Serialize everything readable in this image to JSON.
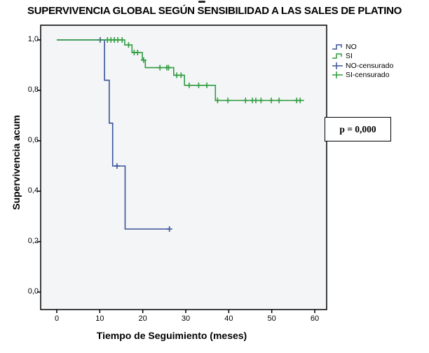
{
  "annotation": {
    "text": "p = 0,000"
  },
  "legend": {
    "items": [
      {
        "label": "NO",
        "symbol": "step",
        "color": "#3a539b"
      },
      {
        "label": "SI",
        "symbol": "step",
        "color": "#2f9c3f"
      },
      {
        "label": "NO-censurado",
        "symbol": "plus",
        "color": "#3a539b"
      },
      {
        "label": "SI-censurado",
        "symbol": "plus",
        "color": "#2f9c3f"
      }
    ]
  },
  "chart_data": {
    "type": "line",
    "subtype": "kaplan-meier-step",
    "title": "SUPERVIVENCIA GLOBAL SEGÚN SENSIBILIDAD A LAS SALES DE PLATINO",
    "xlabel": "Tiempo de Seguimiento (meses)",
    "ylabel": "Supervivencia acum",
    "xlim": [
      0,
      63
    ],
    "ylim": [
      0.0,
      1.0
    ],
    "x_ticks": [
      0,
      10,
      20,
      30,
      40,
      50,
      60
    ],
    "y_ticks": [
      {
        "value": 1.0,
        "label": "1,0"
      },
      {
        "value": 0.8,
        "label": "0,8"
      },
      {
        "value": 0.6,
        "label": "0,6"
      },
      {
        "value": 0.4,
        "label": "0,4"
      },
      {
        "value": 0.2,
        "label": "0,2"
      },
      {
        "value": 0.0,
        "label": "0,0"
      }
    ],
    "grid": false,
    "plot_background": "#f4f5f7",
    "legend_position": "right-top-outside",
    "series": [
      {
        "name": "NO",
        "color": "#3a539b",
        "steps": [
          [
            0,
            1.0
          ],
          [
            11.1,
            1.0
          ],
          [
            11.1,
            0.84
          ],
          [
            12.2,
            0.84
          ],
          [
            12.2,
            0.67
          ],
          [
            13.0,
            0.67
          ],
          [
            13.0,
            0.5
          ],
          [
            15.9,
            0.5
          ],
          [
            15.9,
            0.25
          ],
          [
            26.2,
            0.25
          ]
        ],
        "censored": [
          [
            10.1,
            1.0
          ],
          [
            14.0,
            0.5
          ],
          [
            26.2,
            0.25
          ]
        ]
      },
      {
        "name": "SI",
        "color": "#2f9c3f",
        "steps": [
          [
            0,
            1.0
          ],
          [
            15.8,
            1.0
          ],
          [
            15.8,
            0.98
          ],
          [
            17.5,
            0.98
          ],
          [
            17.5,
            0.95
          ],
          [
            19.9,
            0.95
          ],
          [
            19.9,
            0.92
          ],
          [
            20.6,
            0.92
          ],
          [
            20.6,
            0.89
          ],
          [
            27.2,
            0.89
          ],
          [
            27.2,
            0.86
          ],
          [
            29.7,
            0.86
          ],
          [
            29.7,
            0.82
          ],
          [
            36.9,
            0.82
          ],
          [
            36.9,
            0.76
          ],
          [
            57.5,
            0.76
          ]
        ],
        "censored": [
          [
            11.8,
            1.0
          ],
          [
            12.6,
            1.0
          ],
          [
            13.4,
            1.0
          ],
          [
            14.2,
            1.0
          ],
          [
            15.2,
            1.0
          ],
          [
            16.7,
            0.98
          ],
          [
            18.0,
            0.95
          ],
          [
            18.8,
            0.95
          ],
          [
            20.2,
            0.92
          ],
          [
            24.0,
            0.89
          ],
          [
            25.6,
            0.89
          ],
          [
            26.0,
            0.89
          ],
          [
            27.9,
            0.86
          ],
          [
            28.9,
            0.86
          ],
          [
            30.8,
            0.82
          ],
          [
            33.0,
            0.82
          ],
          [
            34.9,
            0.82
          ],
          [
            37.4,
            0.76
          ],
          [
            39.8,
            0.76
          ],
          [
            43.9,
            0.76
          ],
          [
            45.5,
            0.76
          ],
          [
            46.3,
            0.76
          ],
          [
            47.5,
            0.76
          ],
          [
            49.9,
            0.76
          ],
          [
            51.7,
            0.76
          ],
          [
            55.8,
            0.76
          ],
          [
            56.6,
            0.76
          ]
        ]
      }
    ]
  }
}
